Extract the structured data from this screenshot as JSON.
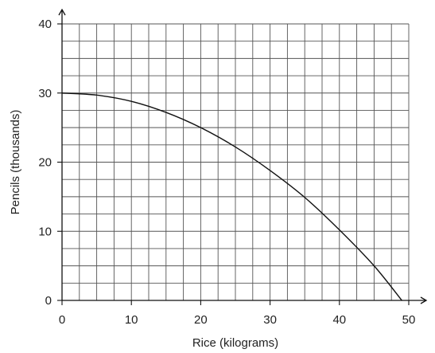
{
  "chart_data": {
    "type": "line",
    "title": "",
    "xlabel": "Rice (kilograms)",
    "ylabel": "Pencils (thousands)",
    "xlim": [
      0,
      50
    ],
    "ylim": [
      0,
      40
    ],
    "x_ticks": [
      0,
      10,
      20,
      30,
      40,
      50
    ],
    "y_ticks": [
      0,
      10,
      20,
      30,
      40
    ],
    "x_tick_labels": [
      "0",
      "10",
      "20",
      "30",
      "40",
      "50"
    ],
    "y_tick_labels": [
      "0",
      "10",
      "20",
      "30",
      "40"
    ],
    "grid": true,
    "grid_step_x": 2.5,
    "grid_step_y": 2.5,
    "colors": {
      "grid": "#555555",
      "axis": "#111111",
      "curve": "#111111"
    },
    "series": [
      {
        "x": [
          0,
          5,
          10,
          15,
          20,
          25,
          30,
          35,
          40,
          45,
          49
        ],
        "y": [
          30,
          29.7,
          28.8,
          27.2,
          25,
          22.2,
          18.8,
          14.9,
          10.2,
          5,
          0
        ]
      }
    ]
  }
}
